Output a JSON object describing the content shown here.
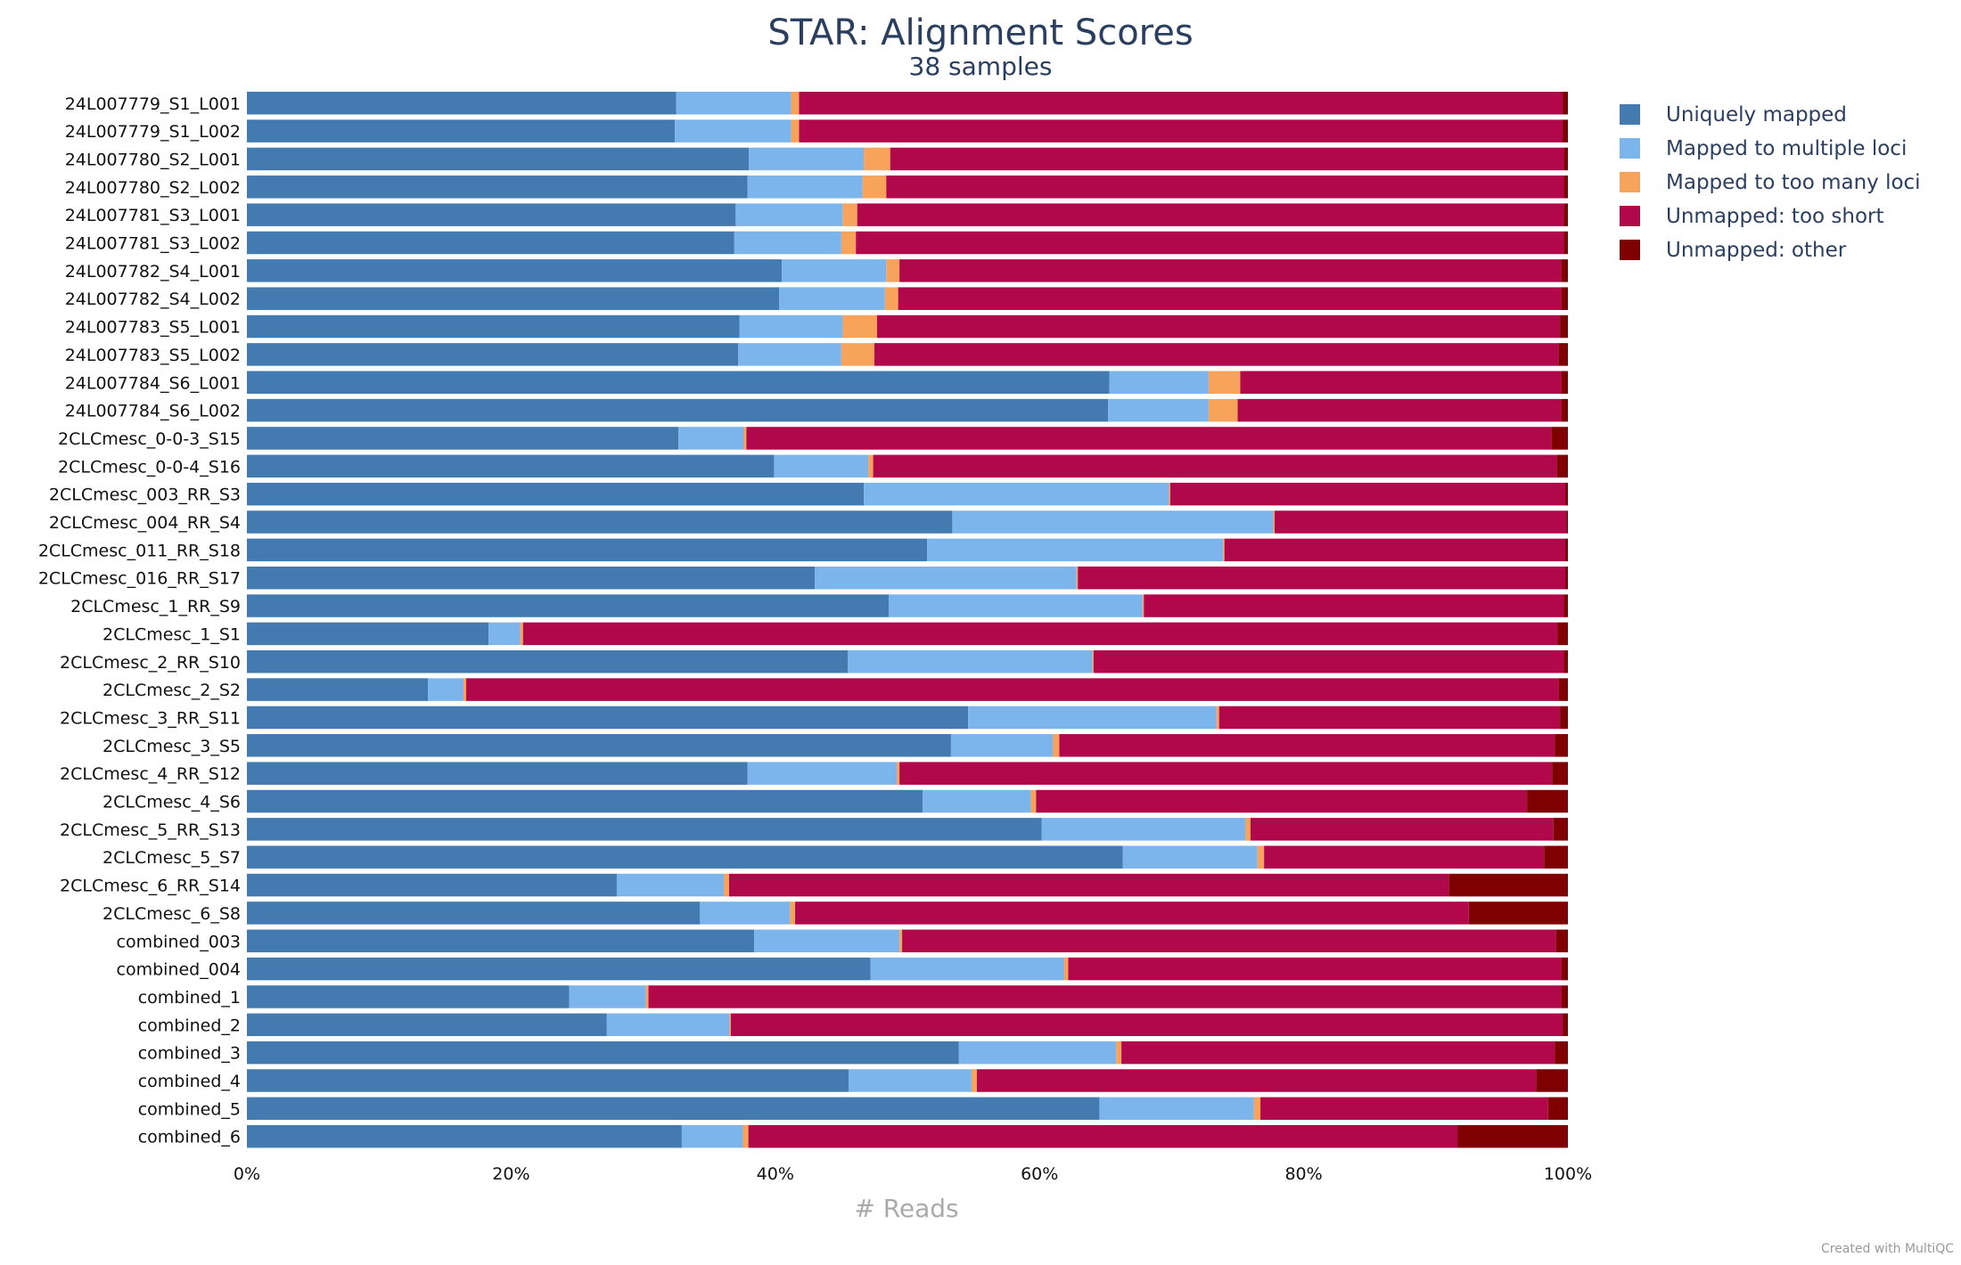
{
  "chart_data": {
    "type": "bar",
    "orientation": "horizontal",
    "stacked": "percent",
    "title": "STAR: Alignment Scores",
    "subtitle": "38 samples",
    "xlabel": "# Reads",
    "xlim": [
      0,
      100
    ],
    "xticks": [
      "0%",
      "20%",
      "40%",
      "60%",
      "80%",
      "100%"
    ],
    "grid": false,
    "legend_position": "right",
    "categories": [
      "24L007779_S1_L001",
      "24L007779_S1_L002",
      "24L007780_S2_L001",
      "24L007780_S2_L002",
      "24L007781_S3_L001",
      "24L007781_S3_L002",
      "24L007782_S4_L001",
      "24L007782_S4_L002",
      "24L007783_S5_L001",
      "24L007783_S5_L002",
      "24L007784_S6_L001",
      "24L007784_S6_L002",
      "2CLCmesc_0-0-3_S15",
      "2CLCmesc_0-0-4_S16",
      "2CLCmesc_003_RR_S3",
      "2CLCmesc_004_RR_S4",
      "2CLCmesc_011_RR_S18",
      "2CLCmesc_016_RR_S17",
      "2CLCmesc_1_RR_S9",
      "2CLCmesc_1_S1",
      "2CLCmesc_2_RR_S10",
      "2CLCmesc_2_S2",
      "2CLCmesc_3_RR_S11",
      "2CLCmesc_3_S5",
      "2CLCmesc_4_RR_S12",
      "2CLCmesc_4_S6",
      "2CLCmesc_5_RR_S13",
      "2CLCmesc_5_S7",
      "2CLCmesc_6_RR_S14",
      "2CLCmesc_6_S8",
      "combined_003",
      "combined_004",
      "combined_1",
      "combined_2",
      "combined_3",
      "combined_4",
      "combined_5",
      "combined_6"
    ],
    "series": [
      {
        "name": "Uniquely mapped",
        "color": "#437bb1",
        "values": [
          32.5,
          32.4,
          38.0,
          37.9,
          37.0,
          36.9,
          40.5,
          40.3,
          37.3,
          37.2,
          65.3,
          65.2,
          34.3,
          43.1,
          46.7,
          53.4,
          51.5,
          43.0,
          48.6,
          18.3,
          45.5,
          13.7,
          54.6,
          53.3,
          37.9,
          51.2,
          60.1,
          66.3,
          28.0,
          34.3,
          38.4,
          47.3,
          24.4,
          27.2,
          53.9,
          45.5,
          64.6,
          32.0
        ]
      },
      {
        "name": "Mapped to multiple loci",
        "color": "#7cb5ec",
        "values": [
          8.7,
          8.8,
          8.7,
          8.7,
          8.1,
          8.1,
          7.9,
          8.0,
          7.8,
          7.8,
          7.5,
          7.6,
          5.2,
          7.7,
          23.1,
          24.3,
          22.4,
          19.8,
          19.2,
          2.4,
          18.5,
          2.7,
          18.8,
          7.7,
          11.3,
          8.2,
          15.4,
          10.2,
          8.1,
          6.8,
          11.0,
          14.7,
          5.8,
          9.3,
          11.9,
          9.3,
          11.7,
          4.5
        ]
      },
      {
        "name": "Mapped to too many loci",
        "color": "#f7a35c",
        "values": [
          0.6,
          0.6,
          2.0,
          1.8,
          1.1,
          1.1,
          1.0,
          1.0,
          2.6,
          2.5,
          2.4,
          2.2,
          0.2,
          0.4,
          0.1,
          0.1,
          0.1,
          0.1,
          0.1,
          0.2,
          0.1,
          0.2,
          0.2,
          0.5,
          0.2,
          0.4,
          0.4,
          0.5,
          0.4,
          0.4,
          0.2,
          0.3,
          0.2,
          0.1,
          0.4,
          0.4,
          0.5,
          0.4
        ]
      },
      {
        "name": "Unmapped: too short",
        "color": "#b1084c",
        "values": [
          57.8,
          57.8,
          51.0,
          51.3,
          53.5,
          53.6,
          50.1,
          50.2,
          51.7,
          51.8,
          24.3,
          24.5,
          64.0,
          55.9,
          29.9,
          22.1,
          25.8,
          36.9,
          31.8,
          78.3,
          35.6,
          82.7,
          25.8,
          37.5,
          49.4,
          37.2,
          22.9,
          21.2,
          54.5,
          51.0,
          49.5,
          37.4,
          69.1,
          62.9,
          32.8,
          42.3,
          21.8,
          52.2
        ]
      },
      {
        "name": "Unmapped: other",
        "color": "#7f0000",
        "values": [
          0.4,
          0.4,
          0.3,
          0.3,
          0.3,
          0.3,
          0.5,
          0.5,
          0.6,
          0.7,
          0.5,
          0.5,
          1.3,
          0.9,
          0.2,
          0.1,
          0.2,
          0.2,
          0.3,
          0.8,
          0.3,
          0.7,
          0.6,
          1.0,
          1.2,
          3.1,
          1.1,
          1.8,
          9.0,
          7.5,
          0.9,
          0.5,
          0.5,
          0.4,
          1.0,
          2.4,
          1.5,
          8.1
        ]
      }
    ]
  },
  "footer": {
    "credit": "Created with MultiQC"
  }
}
